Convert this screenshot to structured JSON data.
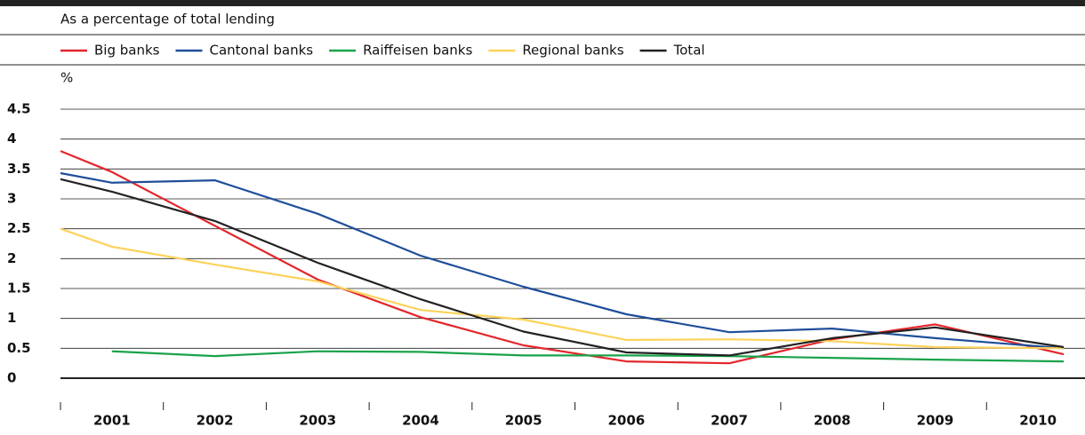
{
  "chart_data": {
    "type": "line",
    "subtitle": "As a percentage of total lending",
    "y_unit": "%",
    "x": [
      2000.5,
      2001,
      2002,
      2003,
      2004,
      2005,
      2006,
      2007,
      2008,
      2009,
      2010.25
    ],
    "xlim": [
      2000.5,
      2010.5
    ],
    "xticks": [
      {
        "value": 2001,
        "label": "2001"
      },
      {
        "value": 2002,
        "label": "2002"
      },
      {
        "value": 2003,
        "label": "2003"
      },
      {
        "value": 2004,
        "label": "2004"
      },
      {
        "value": 2005,
        "label": "2005"
      },
      {
        "value": 2006,
        "label": "2006"
      },
      {
        "value": 2007,
        "label": "2007"
      },
      {
        "value": 2008,
        "label": "2008"
      },
      {
        "value": 2009,
        "label": "2009"
      },
      {
        "value": 2010,
        "label": "2010"
      }
    ],
    "ylim": [
      0,
      4.5
    ],
    "yticks": [
      0,
      0.5,
      1,
      1.5,
      2,
      2.5,
      3,
      3.5,
      4,
      4.5
    ],
    "grid": true,
    "series": [
      {
        "name": "Big banks",
        "color": "#e3262b",
        "values": [
          3.8,
          3.45,
          2.55,
          1.65,
          1.02,
          0.55,
          0.28,
          0.25,
          0.65,
          0.9,
          0.4
        ]
      },
      {
        "name": "Cantonal banks",
        "color": "#1f4e9a",
        "values": [
          3.43,
          3.27,
          3.31,
          2.75,
          2.05,
          1.53,
          1.07,
          0.77,
          0.83,
          0.67,
          0.5
        ]
      },
      {
        "name": "Raiffeisen banks",
        "color": "#1aa34a",
        "values": [
          null,
          0.45,
          0.37,
          0.45,
          0.44,
          0.38,
          0.38,
          0.37,
          0.34,
          0.31,
          0.28
        ]
      },
      {
        "name": "Regional banks",
        "color": "#fcd25a",
        "values": [
          2.5,
          2.2,
          1.9,
          1.62,
          1.14,
          0.98,
          0.64,
          0.65,
          0.62,
          0.52,
          0.5
        ]
      },
      {
        "name": "Total",
        "color": "#222222",
        "values": [
          3.33,
          3.12,
          2.63,
          1.93,
          1.32,
          0.78,
          0.43,
          0.38,
          0.67,
          0.85,
          0.52
        ]
      }
    ]
  }
}
